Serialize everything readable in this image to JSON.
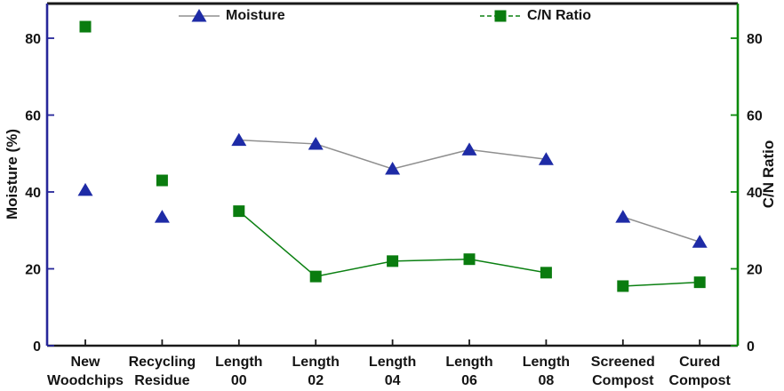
{
  "legend": {
    "items": [
      {
        "label": "Moisture",
        "marker": "triangle",
        "marker_color": "#1e2ba6",
        "line_color": "#8f8f8f",
        "line_style": "solid"
      },
      {
        "label": "C/N Ratio",
        "marker": "square",
        "marker_color": "#0a7c0f",
        "line_color": "#0b8012",
        "line_style": "dashed"
      }
    ]
  },
  "axes": {
    "left": {
      "title": "Moisture (%)",
      "ticks": [
        0,
        20,
        40,
        60,
        80
      ],
      "color": "#26269a"
    },
    "right": {
      "title": "C/N Ratio",
      "ticks": [
        0,
        20,
        40,
        60,
        80
      ],
      "color": "#0b8a0b"
    },
    "bottom": {
      "color": "#1a1a1a"
    }
  },
  "chart_data": {
    "type": "line",
    "title": "",
    "xlabel": "",
    "ylabel_left": "Moisture (%)",
    "ylabel_right": "C/N Ratio",
    "ylim": [
      0,
      89
    ],
    "yticks": [
      0,
      20,
      40,
      60,
      80
    ],
    "grid": false,
    "legend_position": "top-inside",
    "categories": [
      "New Woodchips",
      "Recycling Residue",
      "Length 00",
      "Length 02",
      "Length 04",
      "Length 06",
      "Length 08",
      "Screened Compost",
      "Cured Compost"
    ],
    "category_labels_2line": [
      [
        "New",
        "Woodchips"
      ],
      [
        "Recycling",
        "Residue"
      ],
      [
        "Length",
        "00"
      ],
      [
        "Length",
        "02"
      ],
      [
        "Length",
        "04"
      ],
      [
        "Length",
        "06"
      ],
      [
        "Length",
        "08"
      ],
      [
        "Screened",
        "Compost"
      ],
      [
        "Cured",
        "Compost"
      ]
    ],
    "series": [
      {
        "name": "Moisture",
        "axis": "left",
        "marker": "triangle",
        "marker_color": "#1e2ba6",
        "line_color": "#8f8f8f",
        "values": [
          40.5,
          33.5,
          53.5,
          52.5,
          46,
          51,
          48.5,
          33.5,
          27
        ],
        "connected_segments": [
          [
            2,
            3,
            4,
            5,
            6
          ],
          [
            7,
            8
          ]
        ]
      },
      {
        "name": "C/N Ratio",
        "axis": "right",
        "marker": "square",
        "marker_color": "#0a7c0f",
        "line_color": "#0b8012",
        "values": [
          83,
          43,
          35,
          18,
          22,
          22.5,
          19,
          15.5,
          16.5
        ],
        "connected_segments": [
          [
            2,
            3,
            4,
            5,
            6
          ],
          [
            7,
            8
          ]
        ]
      }
    ]
  }
}
